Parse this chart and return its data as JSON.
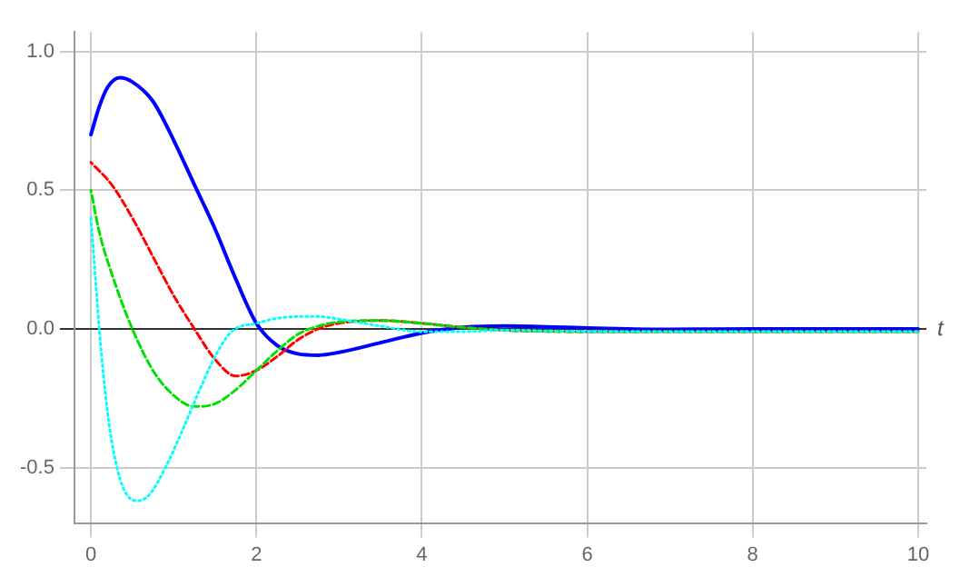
{
  "chart_data": {
    "type": "line",
    "xlabel": "t",
    "xlim": [
      -0.2,
      10.1
    ],
    "ylim": [
      -0.7,
      1.07
    ],
    "xticks": [
      0,
      2,
      4,
      6,
      8,
      10
    ],
    "yticks": [
      {
        "value": -0.5,
        "label": "-0.5"
      },
      {
        "value": 0,
        "label": "0.0"
      },
      0.5,
      {
        "value": 1,
        "label": "1.0"
      }
    ],
    "grid": true,
    "legend": false,
    "marker": "none",
    "series": [
      {
        "color": "#0000ff",
        "line_style": "solid",
        "x": [
          0,
          0.1,
          0.2,
          0.35,
          0.5,
          0.75,
          1,
          1.25,
          1.5,
          1.75,
          2,
          2.25,
          2.5,
          2.75,
          3,
          3.5,
          4,
          4.5,
          5,
          6,
          7,
          8,
          10
        ],
        "values": [
          0.7,
          0.8,
          0.87,
          0.905,
          0.89,
          0.82,
          0.68,
          0.52,
          0.36,
          0.18,
          0.02,
          -0.06,
          -0.09,
          -0.095,
          -0.085,
          -0.05,
          -0.015,
          0.005,
          0.01,
          0.003,
          -0.002,
          0,
          0
        ]
      },
      {
        "color": "#ff0000",
        "line_style": "dashed",
        "x": [
          0,
          0.25,
          0.5,
          0.75,
          1,
          1.25,
          1.5,
          1.75,
          2,
          2.25,
          2.5,
          2.75,
          3,
          3.5,
          4,
          4.5,
          5,
          6,
          7,
          10
        ],
        "values": [
          0.6,
          0.52,
          0.4,
          0.26,
          0.12,
          0,
          -0.11,
          -0.17,
          -0.15,
          -0.1,
          -0.04,
          0,
          0.02,
          0.03,
          0.02,
          0.005,
          -0.005,
          -0.01,
          -0.01,
          -0.01
        ]
      },
      {
        "color": "#00e000",
        "line_style": "dashed",
        "x": [
          0,
          0.1,
          0.25,
          0.5,
          0.75,
          1,
          1.25,
          1.5,
          1.75,
          2,
          2.25,
          2.5,
          2.75,
          3,
          3.5,
          4,
          4.5,
          5,
          6,
          10
        ],
        "values": [
          0.5,
          0.35,
          0.2,
          0,
          -0.15,
          -0.24,
          -0.28,
          -0.27,
          -0.22,
          -0.15,
          -0.08,
          -0.02,
          0.01,
          0.025,
          0.03,
          0.02,
          0.005,
          -0.005,
          -0.01,
          -0.01
        ]
      },
      {
        "color": "#00ffff",
        "line_style": "dotted",
        "x": [
          0,
          0.05,
          0.1,
          0.2,
          0.3,
          0.4,
          0.55,
          0.7,
          0.9,
          1.1,
          1.3,
          1.5,
          1.7,
          2,
          2.3,
          2.7,
          3,
          3.5,
          4,
          4.5,
          5,
          6,
          10
        ],
        "values": [
          0.4,
          0.2,
          0,
          -0.3,
          -0.48,
          -0.58,
          -0.62,
          -0.6,
          -0.5,
          -0.37,
          -0.23,
          -0.1,
          -0.01,
          0.02,
          0.04,
          0.045,
          0.035,
          0.01,
          -0.01,
          -0.01,
          -0.005,
          -0.01,
          -0.01
        ]
      }
    ]
  }
}
